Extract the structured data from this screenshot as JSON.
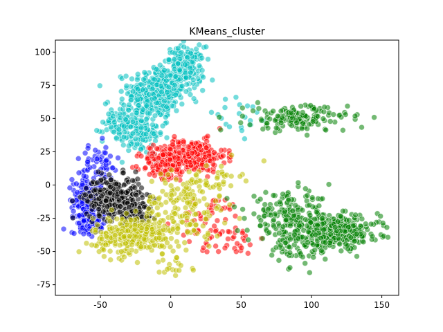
{
  "chart_data": {
    "type": "scatter",
    "title": "KMeans_cluster",
    "xlabel": "",
    "ylabel": "",
    "xlim": [
      -82,
      162
    ],
    "ylim": [
      -83,
      109
    ],
    "xticks": [
      -50,
      0,
      50,
      100,
      150
    ],
    "yticks": [
      -75,
      -50,
      -25,
      0,
      25,
      50,
      75,
      100
    ],
    "grid": false,
    "legend": "none",
    "marker_alpha": 0.55,
    "series": [
      {
        "color": "#00bfbf",
        "regions": [
          {
            "cx": -10,
            "cy": 70,
            "sx": 10,
            "sy": 10,
            "n": 320
          },
          {
            "cx": 10,
            "cy": 88,
            "sx": 7,
            "sy": 8,
            "n": 180
          },
          {
            "cx": -30,
            "cy": 48,
            "sx": 9,
            "sy": 8,
            "n": 140
          },
          {
            "cx": -20,
            "cy": 35,
            "sx": 7,
            "sy": 6,
            "n": 60
          },
          {
            "cx": 45,
            "cy": 50,
            "sx": 15,
            "sy": 10,
            "n": 20
          }
        ]
      },
      {
        "color": "#ff0000",
        "regions": [
          {
            "cx": 15,
            "cy": 22,
            "sx": 12,
            "sy": 6,
            "n": 260
          },
          {
            "cx": -5,
            "cy": 15,
            "sx": 8,
            "sy": 6,
            "n": 100
          },
          {
            "cx": 30,
            "cy": -28,
            "sx": 12,
            "sy": 10,
            "n": 50
          },
          {
            "cx": 45,
            "cy": -42,
            "sx": 12,
            "sy": 6,
            "n": 25
          }
        ]
      },
      {
        "color": "#0000ff",
        "regions": [
          {
            "cx": -60,
            "cy": -12,
            "sx": 5,
            "sy": 10,
            "n": 220
          },
          {
            "cx": -50,
            "cy": 15,
            "sx": 7,
            "sy": 8,
            "n": 50
          },
          {
            "cx": -55,
            "cy": -28,
            "sx": 5,
            "sy": 5,
            "n": 40
          }
        ]
      },
      {
        "color": "#000000",
        "regions": [
          {
            "cx": -40,
            "cy": -10,
            "sx": 10,
            "sy": 8,
            "n": 320
          },
          {
            "cx": -25,
            "cy": -22,
            "sx": 6,
            "sy": 5,
            "n": 60
          }
        ]
      },
      {
        "color": "#bfbf00",
        "regions": [
          {
            "cx": -25,
            "cy": -38,
            "sx": 15,
            "sy": 7,
            "n": 300
          },
          {
            "cx": 10,
            "cy": -15,
            "sx": 15,
            "sy": 12,
            "n": 140
          },
          {
            "cx": 30,
            "cy": 5,
            "sx": 10,
            "sy": 6,
            "n": 40
          },
          {
            "cx": 0,
            "cy": -60,
            "sx": 8,
            "sy": 5,
            "n": 20
          }
        ]
      },
      {
        "color": "#008000",
        "regions": [
          {
            "cx": 90,
            "cy": 50,
            "sx": 18,
            "sy": 5,
            "n": 160
          },
          {
            "cx": 120,
            "cy": -35,
            "sx": 14,
            "sy": 6,
            "n": 300
          },
          {
            "cx": 85,
            "cy": -25,
            "sx": 15,
            "sy": 9,
            "n": 200
          },
          {
            "cx": 95,
            "cy": -45,
            "sx": 10,
            "sy": 8,
            "n": 80
          }
        ]
      }
    ]
  }
}
